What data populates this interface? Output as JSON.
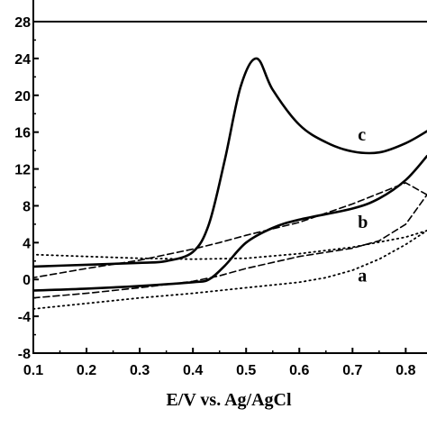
{
  "chart_data": {
    "type": "line",
    "title": "",
    "xlabel": "E/V vs. Ag/AgCl",
    "ylabel": "",
    "xlim": [
      0.1,
      0.84
    ],
    "ylim": [
      -8,
      28
    ],
    "x_ticks": [
      0.1,
      0.2,
      0.3,
      0.4,
      0.5,
      0.6,
      0.7,
      0.8
    ],
    "x_tick_labels": [
      "0.1",
      "0.2",
      "0.3",
      "0.4",
      "0.5",
      "0.6",
      "0.7",
      "0.8"
    ],
    "y_ticks": [
      -8,
      -4,
      0,
      4,
      8,
      12,
      16,
      20,
      24,
      28
    ],
    "y_tick_labels": [
      "-8",
      "-4",
      "0",
      "4",
      "8",
      "12",
      "16",
      "20",
      "24",
      "28"
    ],
    "grid": false,
    "legend": "none",
    "series": [
      {
        "name": "a",
        "style": "dotted",
        "color": "#000000",
        "label_at": [
          0.71,
          -0.2
        ],
        "forward": {
          "x": [
            0.1,
            0.2,
            0.3,
            0.4,
            0.5,
            0.6,
            0.65,
            0.7,
            0.75,
            0.8,
            0.84
          ],
          "y": [
            -3.2,
            -2.6,
            -2.0,
            -1.5,
            -0.9,
            -0.3,
            0.2,
            1.0,
            2.2,
            3.8,
            5.3
          ]
        },
        "reverse": {
          "x": [
            0.84,
            0.8,
            0.7,
            0.6,
            0.5,
            0.4,
            0.3,
            0.2,
            0.1
          ],
          "y": [
            5.3,
            4.6,
            3.5,
            2.8,
            2.3,
            2.2,
            2.3,
            2.5,
            2.7
          ]
        }
      },
      {
        "name": "b",
        "style": "dashed",
        "color": "#000000",
        "label_at": [
          0.71,
          5.6
        ],
        "forward": {
          "x": [
            0.1,
            0.2,
            0.3,
            0.4,
            0.45,
            0.5,
            0.6,
            0.7,
            0.75,
            0.8,
            0.84
          ],
          "y": [
            -2.0,
            -1.5,
            -0.9,
            -0.2,
            0.4,
            1.2,
            2.5,
            3.4,
            4.2,
            6.0,
            9.2
          ]
        },
        "reverse": {
          "x": [
            0.84,
            0.8,
            0.7,
            0.6,
            0.5,
            0.45,
            0.4,
            0.3,
            0.2,
            0.1
          ],
          "y": [
            9.2,
            10.5,
            8.2,
            6.2,
            4.8,
            4.0,
            3.3,
            2.1,
            1.2,
            0.2
          ]
        }
      },
      {
        "name": "c",
        "style": "solid",
        "color": "#000000",
        "label_at": [
          0.71,
          15.1
        ],
        "forward": {
          "x": [
            0.1,
            0.2,
            0.3,
            0.4,
            0.43,
            0.46,
            0.5,
            0.55,
            0.6,
            0.7,
            0.75,
            0.8,
            0.84
          ],
          "y": [
            -1.2,
            -1.0,
            -0.7,
            -0.3,
            0.0,
            1.5,
            4.0,
            5.6,
            6.5,
            7.7,
            8.8,
            10.8,
            13.4
          ],
          "smooth": true
        },
        "reverse": {
          "x": [
            0.84,
            0.8,
            0.75,
            0.7,
            0.65,
            0.6,
            0.55,
            0.52,
            0.49,
            0.46,
            0.43,
            0.4,
            0.35,
            0.3,
            0.2,
            0.1
          ],
          "y": [
            16.1,
            14.8,
            13.8,
            13.9,
            14.9,
            16.8,
            20.6,
            24.0,
            21.0,
            13.0,
            6.0,
            3.0,
            2.0,
            1.8,
            1.6,
            1.4
          ],
          "smooth": true
        }
      }
    ]
  }
}
